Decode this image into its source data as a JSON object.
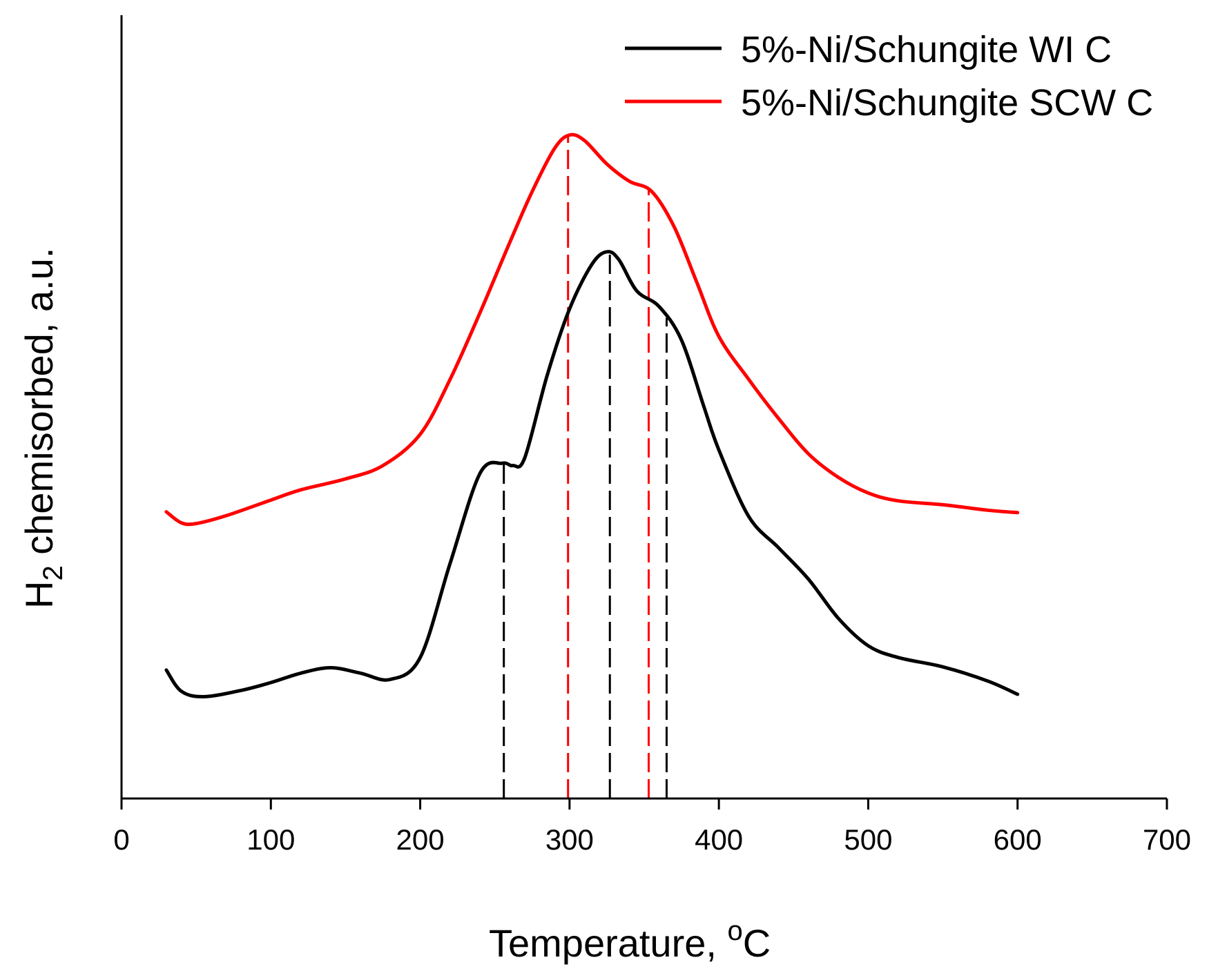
{
  "chart_data": {
    "type": "line",
    "title": "",
    "xlabel": "Temperature, ",
    "xlabel_sup": "o",
    "xlabel_tail": "C",
    "ylabel": "H",
    "ylabel_sub": "2",
    "ylabel_tail": " chemisorbed, a.u.",
    "xlim": [
      0,
      700
    ],
    "ylim": [
      0,
      100
    ],
    "x_ticks": [
      0,
      100,
      200,
      300,
      400,
      500,
      600,
      700
    ],
    "y_ticks": [],
    "grid": false,
    "legend_position": "top-right",
    "series": [
      {
        "name": "5%-Ni/Schungite WI C",
        "color": "#000000",
        "points": [
          [
            30,
            16.4
          ],
          [
            40,
            13.7
          ],
          [
            55,
            13.0
          ],
          [
            80,
            13.8
          ],
          [
            100,
            14.8
          ],
          [
            120,
            16.0
          ],
          [
            140,
            16.7
          ],
          [
            160,
            16.0
          ],
          [
            180,
            15.2
          ],
          [
            200,
            18.0
          ],
          [
            220,
            30.0
          ],
          [
            240,
            41.5
          ],
          [
            255,
            42.8
          ],
          [
            262,
            42.5
          ],
          [
            270,
            43.5
          ],
          [
            285,
            54.0
          ],
          [
            300,
            62.5
          ],
          [
            315,
            68.2
          ],
          [
            325,
            69.8
          ],
          [
            333,
            68.8
          ],
          [
            345,
            64.8
          ],
          [
            360,
            62.8
          ],
          [
            375,
            58.5
          ],
          [
            390,
            50.0
          ],
          [
            400,
            44.5
          ],
          [
            420,
            36.0
          ],
          [
            440,
            32.0
          ],
          [
            460,
            28.0
          ],
          [
            480,
            23.0
          ],
          [
            500,
            19.5
          ],
          [
            520,
            18.0
          ],
          [
            550,
            16.8
          ],
          [
            580,
            15.0
          ],
          [
            600,
            13.3
          ]
        ]
      },
      {
        "name": "5%-Ni/Schungite SCW C",
        "color": "#ff0000",
        "points": [
          [
            30,
            36.6
          ],
          [
            40,
            35.2
          ],
          [
            50,
            35.1
          ],
          [
            70,
            36.1
          ],
          [
            100,
            38.1
          ],
          [
            120,
            39.4
          ],
          [
            150,
            40.8
          ],
          [
            175,
            42.5
          ],
          [
            200,
            46.5
          ],
          [
            220,
            53.5
          ],
          [
            240,
            62.0
          ],
          [
            260,
            71.0
          ],
          [
            275,
            77.5
          ],
          [
            290,
            83.0
          ],
          [
            300,
            84.7
          ],
          [
            310,
            84.0
          ],
          [
            325,
            81.0
          ],
          [
            340,
            78.8
          ],
          [
            355,
            77.5
          ],
          [
            370,
            73.0
          ],
          [
            385,
            66.0
          ],
          [
            400,
            59.0
          ],
          [
            420,
            53.5
          ],
          [
            440,
            48.5
          ],
          [
            460,
            44.0
          ],
          [
            480,
            41.0
          ],
          [
            500,
            39.0
          ],
          [
            520,
            38.0
          ],
          [
            550,
            37.5
          ],
          [
            580,
            36.8
          ],
          [
            600,
            36.5
          ]
        ]
      }
    ],
    "annotations": [
      {
        "type": "dashed-vline",
        "x": 256,
        "series": "5%-Ni/Schungite WI C",
        "color": "#000000"
      },
      {
        "type": "dashed-vline",
        "x": 327,
        "series": "5%-Ni/Schungite WI C",
        "color": "#000000"
      },
      {
        "type": "dashed-vline",
        "x": 365,
        "series": "5%-Ni/Schungite WI C",
        "color": "#000000"
      },
      {
        "type": "dashed-vline",
        "x": 299,
        "series": "5%-Ni/Schungite SCW C",
        "color": "#ff0000"
      },
      {
        "type": "dashed-vline",
        "x": 353,
        "series": "5%-Ni/Schungite SCW C",
        "color": "#ff0000"
      }
    ]
  }
}
